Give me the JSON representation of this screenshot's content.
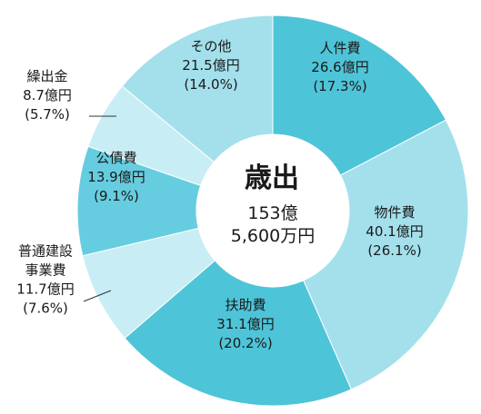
{
  "chart_data": {
    "type": "pie",
    "center_title": "歳出",
    "center_total_line1": "153億",
    "center_total_line2": "5,600万円",
    "slices": [
      {
        "name": "人件費",
        "value_text": "26.6億円",
        "percent_text": "(17.3%)",
        "value": 26.6,
        "color": "#4ec4d8"
      },
      {
        "name": "物件費",
        "value_text": "40.1億円",
        "percent_text": "(26.1%)",
        "value": 40.1,
        "color": "#a3e0ec"
      },
      {
        "name": "扶助費",
        "value_text": "31.1億円",
        "percent_text": "(20.2%)",
        "value": 31.1,
        "color": "#4ec4d8"
      },
      {
        "name": "普通建設事業費",
        "name_lines": [
          "普通建設",
          "事業費"
        ],
        "value_text": "11.7億円",
        "percent_text": "(7.6%)",
        "value": 11.7,
        "color": "#c8edf4"
      },
      {
        "name": "公債費",
        "value_text": "13.9億円",
        "percent_text": "(9.1%)",
        "value": 13.9,
        "color": "#66cde0"
      },
      {
        "name": "繰出金",
        "value_text": "8.7億円",
        "percent_text": "(5.7%)",
        "value": 8.7,
        "color": "#c8edf4"
      },
      {
        "name": "その他",
        "value_text": "21.5億円",
        "percent_text": "(14.0%)",
        "value": 21.5,
        "color": "#a3e0ec"
      }
    ]
  }
}
